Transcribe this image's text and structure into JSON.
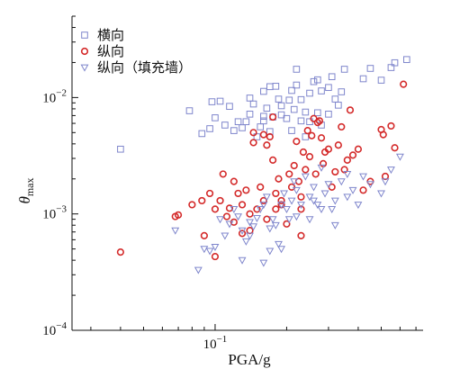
{
  "chart_data": {
    "type": "scatter",
    "x_scale": "log",
    "y_scale": "log",
    "xlabel": "PGA/g",
    "ylabel_symbol": "θ",
    "ylabel_subscript": "max",
    "xlim": [
      0.025,
      0.75
    ],
    "ylim": [
      0.0001,
      0.05
    ],
    "x_ticks": [
      {
        "value": 0.1,
        "base": "10",
        "exp": "−1"
      }
    ],
    "y_ticks": [
      {
        "value": 0.0001,
        "base": "10",
        "exp": "−4"
      },
      {
        "value": 0.001,
        "base": "10",
        "exp": "−3"
      },
      {
        "value": 0.01,
        "base": "10",
        "exp": "−2"
      }
    ],
    "grid": false,
    "legend_position": "top-left",
    "series": [
      {
        "name": "横向",
        "marker": "square",
        "color": "#7f86cc",
        "points": [
          [
            0.04,
            0.0036
          ],
          [
            0.078,
            0.0077
          ],
          [
            0.088,
            0.0049
          ],
          [
            0.095,
            0.0054
          ],
          [
            0.097,
            0.0092
          ],
          [
            0.1,
            0.0067
          ],
          [
            0.105,
            0.0093
          ],
          [
            0.11,
            0.0058
          ],
          [
            0.12,
            0.0052
          ],
          [
            0.125,
            0.0062
          ],
          [
            0.13,
            0.0055
          ],
          [
            0.135,
            0.0062
          ],
          [
            0.14,
            0.0072
          ],
          [
            0.145,
            0.0088
          ],
          [
            0.15,
            0.0046
          ],
          [
            0.155,
            0.0056
          ],
          [
            0.16,
            0.0063
          ],
          [
            0.165,
            0.0081
          ],
          [
            0.17,
            0.0051
          ],
          [
            0.175,
            0.0068
          ],
          [
            0.16,
            0.0113
          ],
          [
            0.17,
            0.0124
          ],
          [
            0.18,
            0.0125
          ],
          [
            0.19,
            0.0085
          ],
          [
            0.2,
            0.0066
          ],
          [
            0.205,
            0.0095
          ],
          [
            0.21,
            0.0115
          ],
          [
            0.215,
            0.0079
          ],
          [
            0.22,
            0.0128
          ],
          [
            0.23,
            0.0096
          ],
          [
            0.24,
            0.0075
          ],
          [
            0.25,
            0.0109
          ],
          [
            0.26,
            0.0137
          ],
          [
            0.27,
            0.0142
          ],
          [
            0.28,
            0.0114
          ],
          [
            0.3,
            0.0122
          ],
          [
            0.32,
            0.0097
          ],
          [
            0.34,
            0.0112
          ],
          [
            0.31,
            0.0151
          ],
          [
            0.35,
            0.0175
          ],
          [
            0.42,
            0.0145
          ],
          [
            0.45,
            0.0178
          ],
          [
            0.5,
            0.0141
          ],
          [
            0.55,
            0.0181
          ],
          [
            0.57,
            0.0199
          ],
          [
            0.64,
            0.0212
          ],
          [
            0.24,
            0.0046
          ],
          [
            0.28,
            0.0058
          ],
          [
            0.3,
            0.0072
          ],
          [
            0.22,
            0.0175
          ],
          [
            0.115,
            0.0084
          ],
          [
            0.185,
            0.0097
          ],
          [
            0.25,
            0.0062
          ],
          [
            0.33,
            0.0086
          ],
          [
            0.19,
            0.0071
          ],
          [
            0.23,
            0.0063
          ],
          [
            0.14,
            0.0099
          ],
          [
            0.16,
            0.0069
          ],
          [
            0.21,
            0.0052
          ],
          [
            0.27,
            0.0074
          ]
        ]
      },
      {
        "name": "纵向",
        "marker": "circle",
        "color": "#d42a2a",
        "points": [
          [
            0.04,
            0.00047
          ],
          [
            0.068,
            0.00095
          ],
          [
            0.07,
            0.00098
          ],
          [
            0.08,
            0.0012
          ],
          [
            0.088,
            0.0013
          ],
          [
            0.09,
            0.00065
          ],
          [
            0.095,
            0.0015
          ],
          [
            0.1,
            0.00043
          ],
          [
            0.1,
            0.0011
          ],
          [
            0.105,
            0.0013
          ],
          [
            0.108,
            0.0022
          ],
          [
            0.112,
            0.00095
          ],
          [
            0.115,
            0.00112
          ],
          [
            0.12,
            0.00085
          ],
          [
            0.125,
            0.0015
          ],
          [
            0.13,
            0.00068
          ],
          [
            0.13,
            0.0012
          ],
          [
            0.135,
            0.0016
          ],
          [
            0.14,
            0.00072
          ],
          [
            0.14,
            0.001
          ],
          [
            0.145,
            0.005
          ],
          [
            0.145,
            0.0041
          ],
          [
            0.15,
            0.0011
          ],
          [
            0.155,
            0.0017
          ],
          [
            0.16,
            0.0013
          ],
          [
            0.16,
            0.0048
          ],
          [
            0.165,
            0.0039
          ],
          [
            0.17,
            0.0046
          ],
          [
            0.175,
            0.0068
          ],
          [
            0.175,
            0.0029
          ],
          [
            0.18,
            0.0015
          ],
          [
            0.18,
            0.0011
          ],
          [
            0.185,
            0.002
          ],
          [
            0.19,
            0.0013
          ],
          [
            0.2,
            0.00082
          ],
          [
            0.205,
            0.0022
          ],
          [
            0.21,
            0.0017
          ],
          [
            0.215,
            0.0026
          ],
          [
            0.22,
            0.0042
          ],
          [
            0.225,
            0.0019
          ],
          [
            0.23,
            0.0014
          ],
          [
            0.235,
            0.0034
          ],
          [
            0.24,
            0.0024
          ],
          [
            0.245,
            0.0052
          ],
          [
            0.25,
            0.0031
          ],
          [
            0.255,
            0.0047
          ],
          [
            0.26,
            0.0066
          ],
          [
            0.265,
            0.0022
          ],
          [
            0.27,
            0.0061
          ],
          [
            0.275,
            0.0063
          ],
          [
            0.28,
            0.0045
          ],
          [
            0.285,
            0.0027
          ],
          [
            0.29,
            0.0034
          ],
          [
            0.3,
            0.0036
          ],
          [
            0.31,
            0.0017
          ],
          [
            0.32,
            0.0023
          ],
          [
            0.33,
            0.0039
          ],
          [
            0.34,
            0.0056
          ],
          [
            0.35,
            0.0024
          ],
          [
            0.36,
            0.0029
          ],
          [
            0.37,
            0.0078
          ],
          [
            0.38,
            0.0032
          ],
          [
            0.4,
            0.0036
          ],
          [
            0.42,
            0.0016
          ],
          [
            0.45,
            0.0019
          ],
          [
            0.5,
            0.0053
          ],
          [
            0.51,
            0.0048
          ],
          [
            0.52,
            0.0021
          ],
          [
            0.55,
            0.0057
          ],
          [
            0.57,
            0.0037
          ],
          [
            0.62,
            0.013
          ],
          [
            0.23,
            0.00065
          ],
          [
            0.19,
            0.0012
          ],
          [
            0.12,
            0.0019
          ],
          [
            0.165,
            0.0009
          ],
          [
            0.23,
            0.0011
          ]
        ]
      },
      {
        "name": "纵向（填充墙）",
        "marker": "triangle-down",
        "color": "#7f86cc",
        "points": [
          [
            0.068,
            0.00072
          ],
          [
            0.085,
            0.00033
          ],
          [
            0.09,
            0.0005
          ],
          [
            0.095,
            0.00048
          ],
          [
            0.1,
            0.00052
          ],
          [
            0.105,
            0.0009
          ],
          [
            0.11,
            0.00065
          ],
          [
            0.115,
            0.00082
          ],
          [
            0.12,
            0.0011
          ],
          [
            0.125,
            0.00095
          ],
          [
            0.13,
            0.00072
          ],
          [
            0.135,
            0.00058
          ],
          [
            0.14,
            0.00085
          ],
          [
            0.145,
            0.00078
          ],
          [
            0.15,
            0.00092
          ],
          [
            0.155,
            0.0011
          ],
          [
            0.16,
            0.0012
          ],
          [
            0.165,
            0.0014
          ],
          [
            0.17,
            0.00075
          ],
          [
            0.175,
            0.0009
          ],
          [
            0.18,
            0.0008
          ],
          [
            0.185,
            0.00055
          ],
          [
            0.19,
            0.0012
          ],
          [
            0.195,
            0.0015
          ],
          [
            0.2,
            0.0011
          ],
          [
            0.205,
            0.0009
          ],
          [
            0.21,
            0.0013
          ],
          [
            0.215,
            0.0019
          ],
          [
            0.22,
            0.0016
          ],
          [
            0.23,
            0.0012
          ],
          [
            0.24,
            0.0021
          ],
          [
            0.25,
            0.0014
          ],
          [
            0.26,
            0.0017
          ],
          [
            0.27,
            0.0012
          ],
          [
            0.28,
            0.0025
          ],
          [
            0.29,
            0.0015
          ],
          [
            0.3,
            0.0018
          ],
          [
            0.31,
            0.0011
          ],
          [
            0.32,
            0.0013
          ],
          [
            0.34,
            0.0019
          ],
          [
            0.36,
            0.0014
          ],
          [
            0.38,
            0.0016
          ],
          [
            0.4,
            0.0012
          ],
          [
            0.42,
            0.0021
          ],
          [
            0.45,
            0.0018
          ],
          [
            0.5,
            0.0015
          ],
          [
            0.52,
            0.0019
          ],
          [
            0.55,
            0.0024
          ],
          [
            0.6,
            0.0031
          ],
          [
            0.13,
            0.0004
          ],
          [
            0.16,
            0.00038
          ],
          [
            0.19,
            0.0005
          ],
          [
            0.25,
            0.0009
          ],
          [
            0.32,
            0.0008
          ],
          [
            0.28,
            0.0011
          ],
          [
            0.22,
            0.00095
          ],
          [
            0.14,
            0.00065
          ],
          [
            0.17,
            0.00048
          ],
          [
            0.36,
            0.0022
          ],
          [
            0.26,
            0.0013
          ]
        ]
      }
    ]
  }
}
